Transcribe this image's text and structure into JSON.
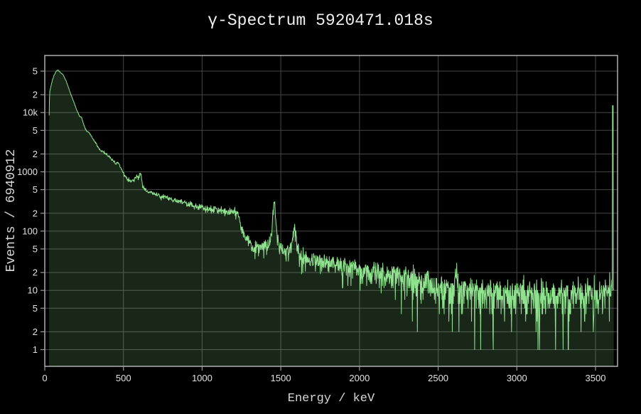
{
  "chart_data": {
    "type": "area",
    "title": "γ-Spectrum 5920471.018s",
    "xlabel": "Energy / keV",
    "ylabel": "Events / 6940912",
    "legend": "none",
    "grid": true,
    "y_scale": "log",
    "x_range": [
      0,
      3640
    ],
    "y_log_range": [
      -0.282,
      4.963
    ],
    "x_ticks": [
      0,
      500,
      1000,
      1500,
      2000,
      2500,
      3000,
      3500
    ],
    "y_ticks": [
      {
        "v": 1,
        "t": "1"
      },
      {
        "v": 2,
        "t": "2"
      },
      {
        "v": 5,
        "t": "5"
      },
      {
        "v": 10,
        "t": "10"
      },
      {
        "v": 20,
        "t": "2"
      },
      {
        "v": 50,
        "t": "5"
      },
      {
        "v": 100,
        "t": "100"
      },
      {
        "v": 200,
        "t": "2"
      },
      {
        "v": 500,
        "t": "5"
      },
      {
        "v": 1000,
        "t": "1000"
      },
      {
        "v": 2000,
        "t": "2"
      },
      {
        "v": 5000,
        "t": "5"
      },
      {
        "v": 10000,
        "t": "10k"
      },
      {
        "v": 20000,
        "t": "2"
      },
      {
        "v": 50000,
        "t": "5"
      }
    ],
    "colors": {
      "background": "#000000",
      "line": "#8fe38f",
      "fill": "rgba(144,230,144,0.17)",
      "grid": "#454545",
      "frame": "#c8c8c8",
      "tick": "#9a9a9a",
      "tick_text": "#e2e2e2",
      "title_text": "#f0f0f0",
      "axis_title_text": "#d6d6d6"
    },
    "bin_width_kev": 2,
    "noise": {
      "model": "poisson",
      "seed": 13,
      "scale": 1.1,
      "min_count": 1
    },
    "envelope_points": [
      [
        27,
        2
      ],
      [
        28,
        9000
      ],
      [
        31,
        22000
      ],
      [
        38,
        27000
      ],
      [
        48,
        35000
      ],
      [
        60,
        43000
      ],
      [
        72,
        49500
      ],
      [
        84,
        52500
      ],
      [
        100,
        47000
      ],
      [
        115,
        44000
      ],
      [
        136,
        34000
      ],
      [
        158,
        23000
      ],
      [
        181,
        16000
      ],
      [
        203,
        11000
      ],
      [
        221,
        8700
      ],
      [
        235,
        8200
      ],
      [
        250,
        6000
      ],
      [
        266,
        4800
      ],
      [
        282,
        4600
      ],
      [
        300,
        3800
      ],
      [
        315,
        3300
      ],
      [
        348,
        2400
      ],
      [
        384,
        2050
      ],
      [
        415,
        1750
      ],
      [
        447,
        1430
      ],
      [
        468,
        1380
      ],
      [
        500,
        950
      ],
      [
        520,
        760
      ],
      [
        545,
        690
      ],
      [
        565,
        710
      ],
      [
        578,
        820
      ],
      [
        585,
        870
      ],
      [
        595,
        800
      ],
      [
        605,
        930
      ],
      [
        612,
        870
      ],
      [
        622,
        560
      ],
      [
        640,
        505
      ],
      [
        665,
        455
      ],
      [
        700,
        420
      ],
      [
        740,
        390
      ],
      [
        800,
        345
      ],
      [
        860,
        310
      ],
      [
        920,
        280
      ],
      [
        980,
        248
      ],
      [
        1050,
        232
      ],
      [
        1120,
        226
      ],
      [
        1180,
        216
      ],
      [
        1225,
        205
      ],
      [
        1240,
        150
      ],
      [
        1255,
        100
      ],
      [
        1270,
        78
      ],
      [
        1290,
        64
      ],
      [
        1320,
        55
      ],
      [
        1360,
        50
      ],
      [
        1400,
        55
      ],
      [
        1425,
        62
      ],
      [
        1442,
        90
      ],
      [
        1450,
        200
      ],
      [
        1456,
        300
      ],
      [
        1461,
        320
      ],
      [
        1468,
        150
      ],
      [
        1478,
        80
      ],
      [
        1492,
        50
      ],
      [
        1520,
        42
      ],
      [
        1555,
        45
      ],
      [
        1572,
        60
      ],
      [
        1580,
        95
      ],
      [
        1588,
        120
      ],
      [
        1596,
        85
      ],
      [
        1608,
        48
      ],
      [
        1630,
        36
      ],
      [
        1680,
        33
      ],
      [
        1750,
        30
      ],
      [
        1850,
        27
      ],
      [
        1950,
        24
      ],
      [
        2050,
        21.5
      ],
      [
        2150,
        19.5
      ],
      [
        2250,
        17.5
      ],
      [
        2350,
        15
      ],
      [
        2420,
        12.5
      ],
      [
        2480,
        11
      ],
      [
        2540,
        10
      ],
      [
        2590,
        10.5
      ],
      [
        2602,
        11
      ],
      [
        2610,
        20
      ],
      [
        2618,
        20
      ],
      [
        2628,
        10
      ],
      [
        2700,
        9.2
      ],
      [
        2800,
        9
      ],
      [
        2847,
        8.8
      ],
      [
        2848,
        1.2
      ],
      [
        2850,
        1.2
      ],
      [
        2851,
        8.8
      ],
      [
        2900,
        8.6
      ],
      [
        3000,
        8.8
      ],
      [
        3100,
        8.6
      ],
      [
        3200,
        8.5
      ],
      [
        3300,
        8.4
      ],
      [
        3400,
        8.6
      ],
      [
        3500,
        8.8
      ],
      [
        3560,
        9.2
      ],
      [
        3600,
        10
      ],
      [
        3606,
        11
      ],
      [
        3607.5,
        11
      ],
      [
        3608,
        13000
      ],
      [
        3613,
        13000
      ],
      [
        3613.5,
        11
      ],
      [
        3616,
        10
      ]
    ],
    "peaks_kev_annotated": [
      1461,
      1590,
      2614
    ],
    "overflow_bin": {
      "energy_kev": 3610,
      "counts": 13000
    }
  }
}
